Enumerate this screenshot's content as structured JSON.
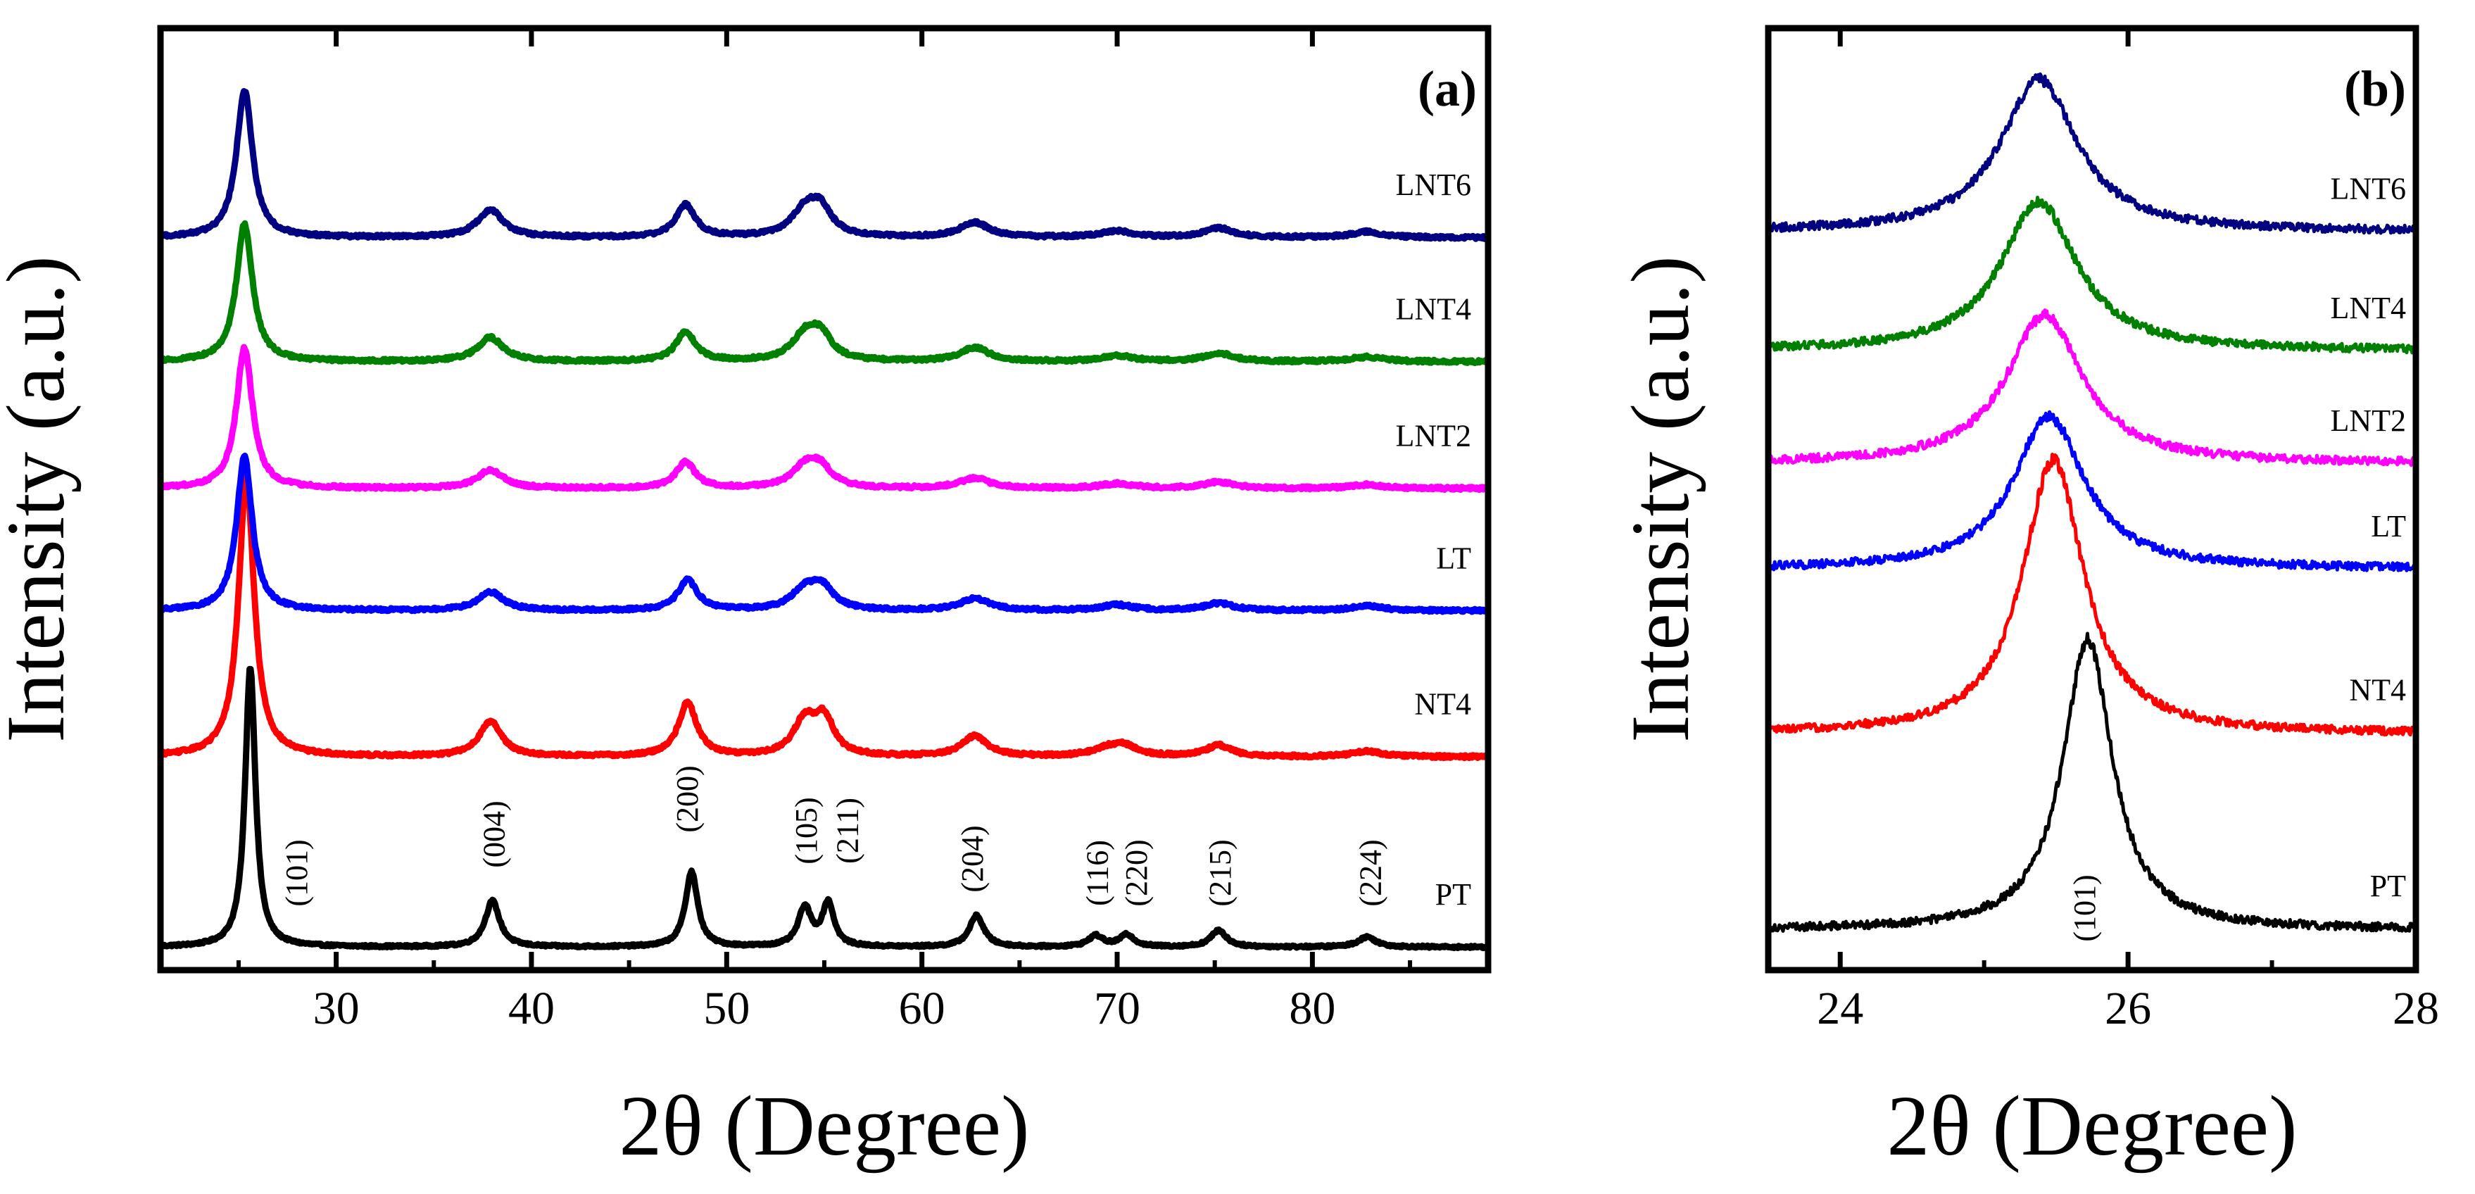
{
  "chart_data": [
    {
      "type": "line",
      "panel_label": "(a)",
      "xlabel": "2θ (Degree)",
      "ylabel": "Intensity (a.u.)",
      "xlim": [
        21,
        89
      ],
      "x_ticks": [
        30,
        40,
        50,
        60,
        70,
        80
      ],
      "x_tick_labels": [
        "30",
        "40",
        "50",
        "60",
        "70",
        "80"
      ],
      "y_ticks": false,
      "grid": false,
      "series": [
        {
          "name": "PT",
          "color": "#000000",
          "offset": 0.0,
          "noise": 0.012,
          "line_width": 9,
          "peaks": [
            {
              "x": 25.6,
              "h": 3.05,
              "w": 0.32
            },
            {
              "x": 38.0,
              "h": 0.5,
              "w": 0.45
            },
            {
              "x": 48.2,
              "h": 0.82,
              "w": 0.38
            },
            {
              "x": 54.0,
              "h": 0.42,
              "w": 0.4
            },
            {
              "x": 55.2,
              "h": 0.47,
              "w": 0.36
            },
            {
              "x": 62.8,
              "h": 0.34,
              "w": 0.45
            },
            {
              "x": 68.9,
              "h": 0.12,
              "w": 0.45
            },
            {
              "x": 70.5,
              "h": 0.13,
              "w": 0.45
            },
            {
              "x": 75.2,
              "h": 0.18,
              "w": 0.48
            },
            {
              "x": 82.8,
              "h": 0.11,
              "w": 0.55
            }
          ]
        },
        {
          "name": "NT4",
          "color": "#ff0000",
          "offset": 2.07,
          "noise": 0.016,
          "line_width": 9,
          "peaks": [
            {
              "x": 25.4,
              "h": 3.05,
              "w": 0.48
            },
            {
              "x": 37.9,
              "h": 0.38,
              "w": 0.7
            },
            {
              "x": 48.0,
              "h": 0.58,
              "w": 0.58
            },
            {
              "x": 54.0,
              "h": 0.38,
              "w": 0.7
            },
            {
              "x": 55.0,
              "h": 0.38,
              "w": 0.6
            },
            {
              "x": 62.7,
              "h": 0.22,
              "w": 0.8
            },
            {
              "x": 69.5,
              "h": 0.08,
              "w": 0.9
            },
            {
              "x": 70.4,
              "h": 0.1,
              "w": 0.8
            },
            {
              "x": 75.2,
              "h": 0.12,
              "w": 0.8
            },
            {
              "x": 82.8,
              "h": 0.06,
              "w": 0.9
            }
          ]
        },
        {
          "name": "LT",
          "color": "#0000ff",
          "offset": 3.66,
          "noise": 0.016,
          "line_width": 9,
          "peaks": [
            {
              "x": 25.3,
              "h": 1.68,
              "w": 0.48
            },
            {
              "x": 37.9,
              "h": 0.2,
              "w": 0.8
            },
            {
              "x": 48.0,
              "h": 0.33,
              "w": 0.6
            },
            {
              "x": 54.0,
              "h": 0.22,
              "w": 0.8
            },
            {
              "x": 54.9,
              "h": 0.22,
              "w": 0.7
            },
            {
              "x": 62.7,
              "h": 0.13,
              "w": 0.9
            },
            {
              "x": 70.0,
              "h": 0.06,
              "w": 1.0
            },
            {
              "x": 75.2,
              "h": 0.08,
              "w": 0.9
            },
            {
              "x": 82.8,
              "h": 0.05,
              "w": 1.0
            }
          ]
        },
        {
          "name": "LNT2",
          "color": "#ff00ff",
          "offset": 4.99,
          "noise": 0.016,
          "line_width": 9,
          "peaks": [
            {
              "x": 25.3,
              "h": 1.53,
              "w": 0.5
            },
            {
              "x": 37.9,
              "h": 0.2,
              "w": 0.8
            },
            {
              "x": 47.9,
              "h": 0.28,
              "w": 0.6
            },
            {
              "x": 54.0,
              "h": 0.22,
              "w": 0.8
            },
            {
              "x": 54.8,
              "h": 0.2,
              "w": 0.7
            },
            {
              "x": 62.7,
              "h": 0.11,
              "w": 0.9
            },
            {
              "x": 70.0,
              "h": 0.05,
              "w": 1.0
            },
            {
              "x": 75.2,
              "h": 0.07,
              "w": 0.9
            },
            {
              "x": 82.8,
              "h": 0.04,
              "w": 1.0
            }
          ]
        },
        {
          "name": "LNT4",
          "color": "#008000",
          "offset": 6.37,
          "noise": 0.016,
          "line_width": 9,
          "peaks": [
            {
              "x": 25.3,
              "h": 1.5,
              "w": 0.5
            },
            {
              "x": 37.9,
              "h": 0.26,
              "w": 0.8
            },
            {
              "x": 47.9,
              "h": 0.32,
              "w": 0.6
            },
            {
              "x": 54.0,
              "h": 0.26,
              "w": 0.8
            },
            {
              "x": 54.8,
              "h": 0.26,
              "w": 0.7
            },
            {
              "x": 62.7,
              "h": 0.15,
              "w": 0.9
            },
            {
              "x": 70.0,
              "h": 0.06,
              "w": 1.0
            },
            {
              "x": 75.2,
              "h": 0.09,
              "w": 0.9
            },
            {
              "x": 82.8,
              "h": 0.05,
              "w": 1.0
            }
          ]
        },
        {
          "name": "LNT6",
          "color": "#000080",
          "offset": 7.72,
          "noise": 0.016,
          "line_width": 9,
          "peaks": [
            {
              "x": 25.3,
              "h": 1.6,
              "w": 0.5
            },
            {
              "x": 37.9,
              "h": 0.3,
              "w": 0.8
            },
            {
              "x": 47.9,
              "h": 0.35,
              "w": 0.6
            },
            {
              "x": 54.0,
              "h": 0.28,
              "w": 0.8
            },
            {
              "x": 54.8,
              "h": 0.28,
              "w": 0.7
            },
            {
              "x": 62.7,
              "h": 0.16,
              "w": 0.9
            },
            {
              "x": 70.0,
              "h": 0.07,
              "w": 1.0
            },
            {
              "x": 75.2,
              "h": 0.1,
              "w": 0.9
            },
            {
              "x": 82.8,
              "h": 0.06,
              "w": 1.0
            }
          ]
        }
      ],
      "annotations": [
        {
          "text": "(101)",
          "x": 28.0
        },
        {
          "text": "(004)",
          "x": 38.1
        },
        {
          "text": "(200)",
          "x": 48.0
        },
        {
          "text": "(105)",
          "x": 54.1
        },
        {
          "text": "(211)",
          "x": 56.2
        },
        {
          "text": "(204)",
          "x": 62.6
        },
        {
          "text": "(116)",
          "x": 69.0
        },
        {
          "text": "(220)",
          "x": 71.0
        },
        {
          "text": "(215)",
          "x": 75.3
        },
        {
          "text": "(224)",
          "x": 83.0
        }
      ]
    },
    {
      "type": "line",
      "panel_label": "(b)",
      "xlabel": "2θ (Degree)",
      "ylabel": "Intensity (a.u.)",
      "xlim": [
        23.5,
        28.0
      ],
      "x_ticks": [
        24,
        26,
        28
      ],
      "x_tick_labels": [
        "24",
        "26",
        "28"
      ],
      "x_minor_ticks": [
        25,
        27
      ],
      "y_ticks": false,
      "grid": false,
      "series": [
        {
          "name": "PT",
          "color": "#000000",
          "offset": 0.0,
          "noise": 0.05,
          "line_width": 5,
          "peaks": [
            {
              "x": 25.72,
              "h": 3.6,
              "w": 0.21
            }
          ]
        },
        {
          "name": "NT4",
          "color": "#ff0000",
          "offset": 2.43,
          "noise": 0.05,
          "line_width": 5,
          "peaks": [
            {
              "x": 25.48,
              "h": 3.4,
              "w": 0.26
            }
          ]
        },
        {
          "name": "LT",
          "color": "#0000ff",
          "offset": 4.48,
          "noise": 0.05,
          "line_width": 5,
          "peaks": [
            {
              "x": 25.45,
              "h": 1.9,
              "w": 0.3
            }
          ]
        },
        {
          "name": "LNT2",
          "color": "#ff00ff",
          "offset": 5.79,
          "noise": 0.05,
          "line_width": 5,
          "peaks": [
            {
              "x": 25.42,
              "h": 1.85,
              "w": 0.32
            }
          ]
        },
        {
          "name": "LNT4",
          "color": "#008000",
          "offset": 7.19,
          "noise": 0.05,
          "line_width": 5,
          "peaks": [
            {
              "x": 25.38,
              "h": 1.85,
              "w": 0.32
            }
          ]
        },
        {
          "name": "LNT6",
          "color": "#000080",
          "offset": 8.67,
          "noise": 0.05,
          "line_width": 5,
          "peaks": [
            {
              "x": 25.38,
              "h": 1.9,
              "w": 0.32
            }
          ]
        }
      ],
      "annotations": [
        {
          "text": "(101)",
          "x": 25.7
        }
      ]
    }
  ]
}
